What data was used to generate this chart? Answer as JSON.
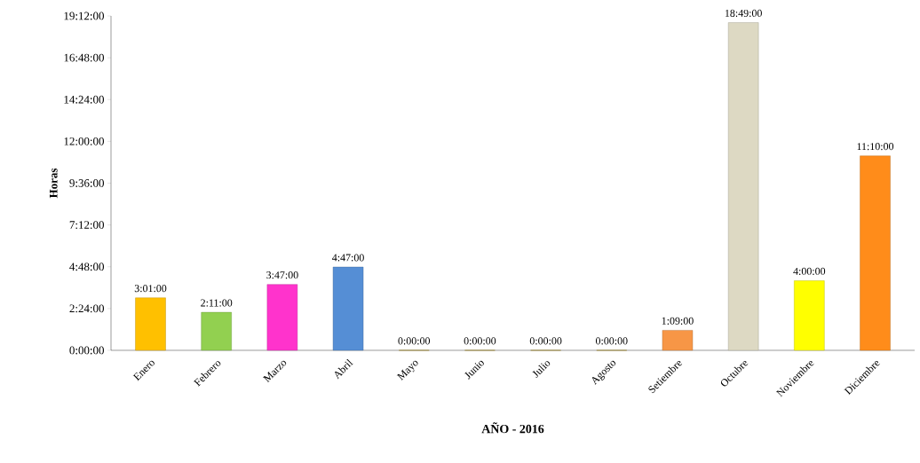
{
  "chart_data": {
    "type": "bar",
    "xlabel": "AÑO - 2016",
    "ylabel": "Horas",
    "categories": [
      "Enero",
      "Febrero",
      "Marzo",
      "Abril",
      "Mayo",
      "Junio",
      "Julio",
      "Agosto",
      "Setiembre",
      "Octubre",
      "Noviembre",
      "Diciembre"
    ],
    "values": [
      3.0167,
      2.1833,
      3.7833,
      4.7833,
      0,
      0,
      0,
      0,
      1.15,
      18.8167,
      4,
      11.1667
    ],
    "value_labels": [
      "3:01:00",
      "2:11:00",
      "3:47:00",
      "4:47:00",
      "0:00:00",
      "0:00:00",
      "0:00:00",
      "0:00:00",
      "1:09:00",
      "18:49:00",
      "4:00:00",
      "11:10:00"
    ],
    "colors": [
      "#ffc000",
      "#92d050",
      "#ff33cc",
      "#558ed5",
      "#c9a000",
      "#c9a000",
      "#c9a000",
      "#c9a000",
      "#f79646",
      "#ddd9c3",
      "#ffff00",
      "#ff8c1a"
    ],
    "ylim": [
      0,
      19.2
    ],
    "yticks": [
      {
        "value": 0,
        "label": "0:00:00"
      },
      {
        "value": 2.4,
        "label": "2:24:00"
      },
      {
        "value": 4.8,
        "label": "4:48:00"
      },
      {
        "value": 7.2,
        "label": "7:12:00"
      },
      {
        "value": 9.6,
        "label": "9:36:00"
      },
      {
        "value": 12,
        "label": "12:00:00"
      },
      {
        "value": 14.4,
        "label": "14:24:00"
      },
      {
        "value": 16.8,
        "label": "16:48:00"
      },
      {
        "value": 19.2,
        "label": "19:12:00"
      }
    ],
    "grid": false
  }
}
